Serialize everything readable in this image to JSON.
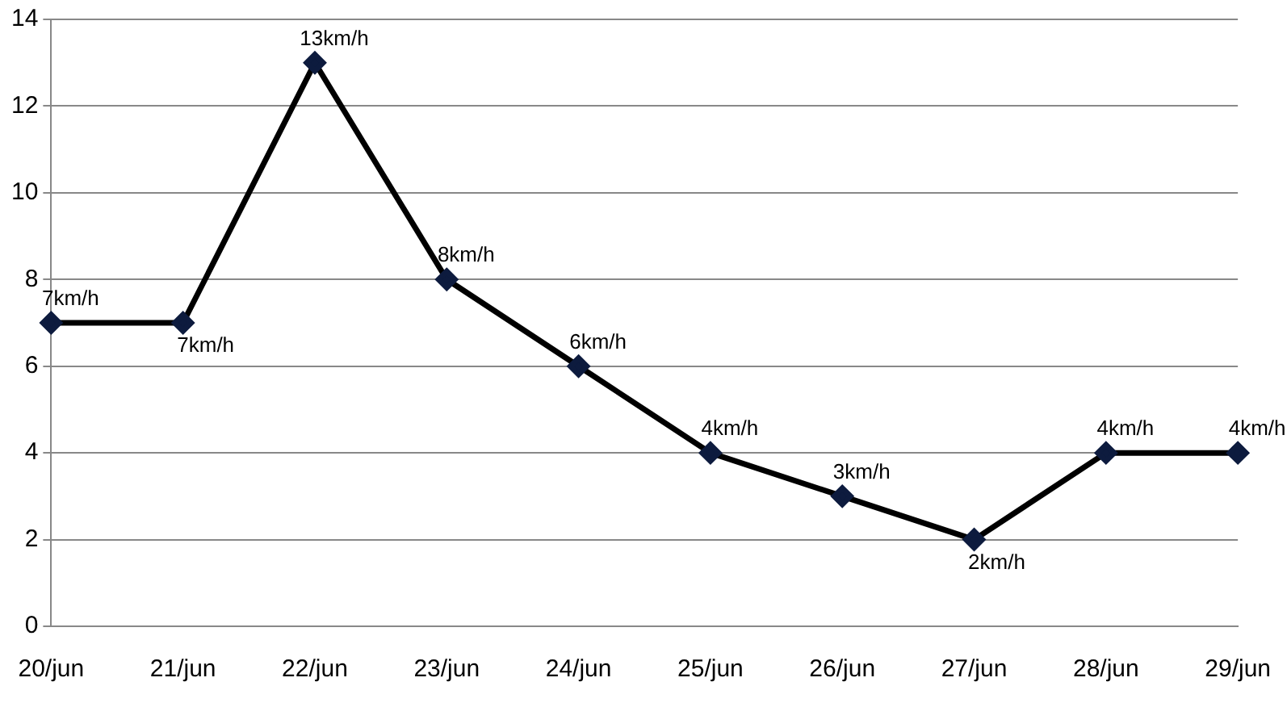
{
  "chart_data": {
    "type": "line",
    "categories": [
      "20/jun",
      "21/jun",
      "22/jun",
      "23/jun",
      "24/jun",
      "25/jun",
      "26/jun",
      "27/jun",
      "28/jun",
      "29/jun"
    ],
    "values": [
      7,
      7,
      13,
      8,
      6,
      4,
      3,
      2,
      4,
      4
    ],
    "value_labels": [
      "7km/h",
      "7km/h",
      "13km/h",
      "8km/h",
      "6km/h",
      "4km/h",
      "3km/h",
      "2km/h",
      "4km/h",
      "4km/h"
    ],
    "color": "#000000",
    "ylim": [
      0,
      14
    ],
    "yticks": [
      0,
      2,
      4,
      6,
      8,
      10,
      12,
      14
    ],
    "grid": "y",
    "legend": false,
    "marker": "diamond",
    "line_style": "solid"
  }
}
